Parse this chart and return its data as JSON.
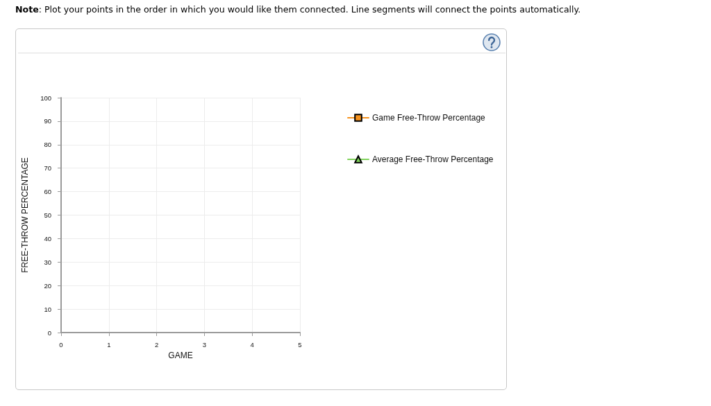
{
  "chart_data": {
    "type": "line",
    "xlabel": "GAME",
    "ylabel": "FREE-THROW PERCENTAGE",
    "annotations": [
      "Note: Plot your points in the order in which you would like them connected. Line segments will connect the points automatically."
    ],
    "categories": [
      "0",
      "1",
      "2",
      "3",
      "4",
      "5"
    ],
    "series": [
      {
        "name": "Game Free-Throw Percentage",
        "color": "#f7931e",
        "marker": "square",
        "values": [
          null,
          null,
          null,
          null,
          null,
          null
        ]
      },
      {
        "name": "Average Free-Throw Percentage",
        "color": "#7fd35a",
        "marker": "triangle",
        "values": [
          null,
          null,
          null,
          null,
          null,
          null
        ]
      }
    ],
    "ylim": [
      0,
      100
    ],
    "yticks": [
      0,
      10,
      20,
      30,
      40,
      50,
      60,
      70,
      80,
      90,
      100
    ],
    "grid": true,
    "legend": "right"
  }
}
